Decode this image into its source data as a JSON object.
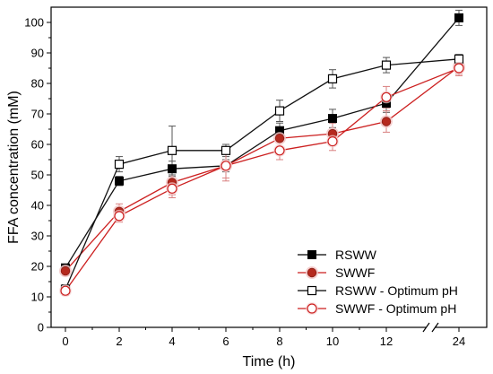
{
  "chart_data": {
    "type": "line",
    "xlabel": "Time (h)",
    "ylabel": "FFA concentration (mM)",
    "x_ticks": [
      "0",
      "2",
      "4",
      "6",
      "8",
      "10",
      "12",
      "24"
    ],
    "x": [
      0,
      2,
      4,
      6,
      8,
      10,
      12,
      24
    ],
    "x_axis_break": "between 12 and 24",
    "ylim": [
      0,
      105
    ],
    "y_ticks": [
      0,
      10,
      20,
      30,
      40,
      50,
      60,
      70,
      80,
      90,
      100
    ],
    "grid": false,
    "legend_position": "bottom-right",
    "series": [
      {
        "name": "RSWW",
        "marker": "filled-square",
        "color": "#000000",
        "values": [
          19.5,
          48,
          52,
          53,
          64.5,
          68.5,
          73.5,
          101.5
        ],
        "errors": [
          1,
          1.5,
          2.5,
          2,
          2.5,
          3,
          3,
          2.5
        ]
      },
      {
        "name": "SWWF",
        "marker": "filled-circle",
        "color": "#cc1f1f",
        "values": [
          18.5,
          38,
          47.5,
          53,
          62,
          63.5,
          67.5,
          85.5
        ],
        "errors": [
          1.5,
          2.5,
          4,
          4,
          3.5,
          3.5,
          3.5,
          3
        ]
      },
      {
        "name": "RSWW - Optimum pH",
        "marker": "open-square",
        "color": "#000000",
        "values": [
          12.5,
          53.5,
          58,
          58,
          71,
          81.5,
          86,
          88
        ],
        "errors": [
          1.5,
          2.5,
          8,
          2,
          3.5,
          3,
          2.5,
          1.5
        ]
      },
      {
        "name": "SWWF - Optimum pH",
        "marker": "open-circle",
        "color": "#cc1f1f",
        "values": [
          12,
          36.5,
          45.5,
          53,
          58,
          61,
          75.5,
          85
        ],
        "errors": [
          1.5,
          2,
          3,
          5,
          3,
          3,
          3.5,
          2
        ]
      }
    ]
  }
}
